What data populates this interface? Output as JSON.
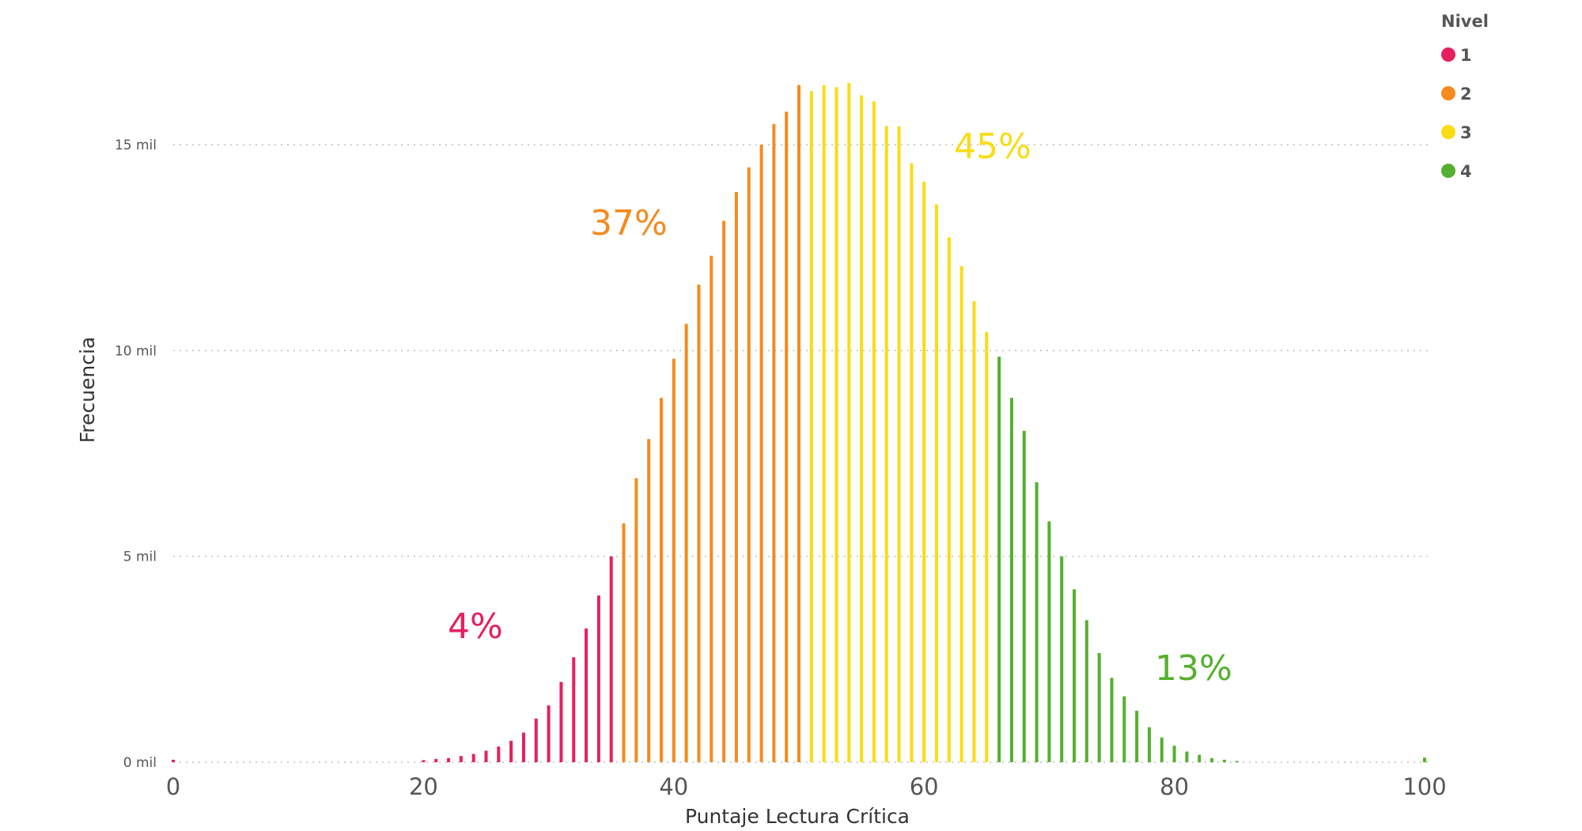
{
  "chart_data": {
    "type": "bar",
    "xlabel": "Puntaje Lectura Crítica",
    "ylabel": "Frecuencia",
    "xlim": [
      0,
      100
    ],
    "ylim": [
      0,
      17000
    ],
    "x_ticks": [
      {
        "value": 0,
        "label": "0"
      },
      {
        "value": 20,
        "label": "20"
      },
      {
        "value": 40,
        "label": "40"
      },
      {
        "value": 60,
        "label": "60"
      },
      {
        "value": 80,
        "label": "80"
      },
      {
        "value": 100,
        "label": "100"
      }
    ],
    "y_ticks": [
      {
        "value": 0,
        "label": "0 mil"
      },
      {
        "value": 5000,
        "label": "5 mil"
      },
      {
        "value": 10000,
        "label": "10 mil"
      },
      {
        "value": 15000,
        "label": "15 mil"
      }
    ],
    "grid": true,
    "legend": {
      "title": "Nivel",
      "placement": "top-right",
      "items": [
        {
          "label": "1",
          "color": "#e5205d"
        },
        {
          "label": "2",
          "color": "#f58a1f"
        },
        {
          "label": "3",
          "color": "#f9dc14"
        },
        {
          "label": "4",
          "color": "#55b02e"
        }
      ]
    },
    "series": [
      {
        "name": "1",
        "color": "#e5205d",
        "x": [
          0,
          20,
          21,
          22,
          23,
          24,
          25,
          26,
          27,
          28,
          29,
          30,
          31,
          32,
          33,
          34,
          35
        ],
        "values": [
          60,
          50,
          80,
          100,
          150,
          200,
          280,
          380,
          520,
          720,
          1060,
          1380,
          1950,
          2550,
          3250,
          4050,
          5000
        ]
      },
      {
        "name": "2",
        "color": "#f58a1f",
        "x": [
          36,
          37,
          38,
          39,
          40,
          41,
          42,
          43,
          44,
          45,
          46,
          47,
          48,
          49,
          50
        ],
        "values": [
          5800,
          6900,
          7850,
          8850,
          9800,
          10650,
          11600,
          12300,
          13150,
          13850,
          14450,
          15000,
          15500,
          15800,
          16450
        ]
      },
      {
        "name": "3",
        "color": "#f9dc14",
        "x": [
          51,
          52,
          53,
          54,
          55,
          56,
          57,
          58,
          59,
          60,
          61,
          62,
          63,
          64,
          65
        ],
        "values": [
          16300,
          16450,
          16400,
          16500,
          16200,
          16050,
          15450,
          15450,
          14550,
          14100,
          13550,
          12750,
          12050,
          11200,
          10450
        ]
      },
      {
        "name": "4",
        "color": "#55b02e",
        "x": [
          66,
          67,
          68,
          69,
          70,
          71,
          72,
          73,
          74,
          75,
          76,
          77,
          78,
          79,
          80,
          81,
          82,
          83,
          84,
          85,
          100
        ],
        "values": [
          9850,
          8850,
          8050,
          6800,
          5850,
          5000,
          4200,
          3450,
          2650,
          2050,
          1600,
          1250,
          850,
          600,
          400,
          260,
          180,
          100,
          60,
          30,
          110
        ]
      }
    ],
    "annotations": [
      {
        "text": "4%",
        "color": "#e5205d"
      },
      {
        "text": "37%",
        "color": "#f58a1f"
      },
      {
        "text": "45%",
        "color": "#f9dc14"
      },
      {
        "text": "13%",
        "color": "#55b02e"
      }
    ]
  }
}
